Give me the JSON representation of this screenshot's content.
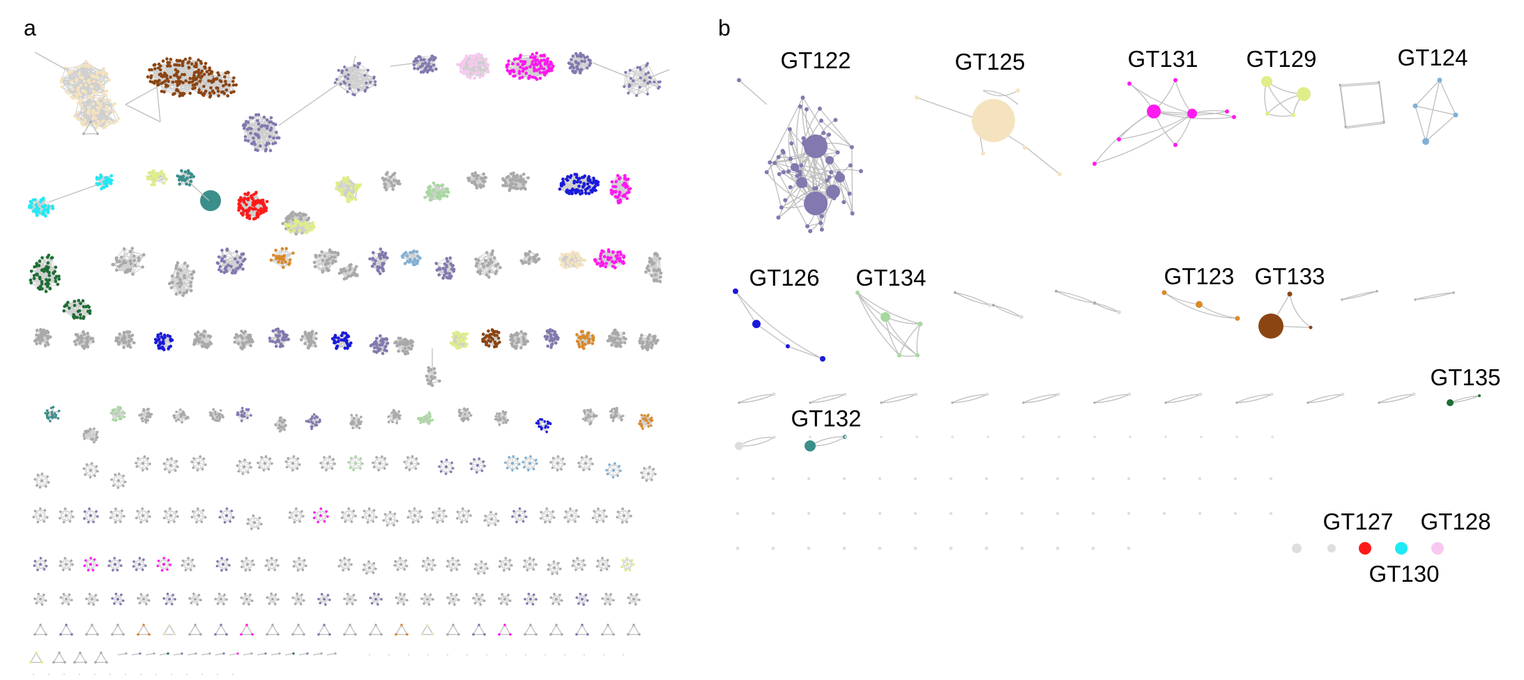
{
  "panels": {
    "a": {
      "letter": "a"
    },
    "b": {
      "letter": "b"
    }
  },
  "colors": {
    "grey": "#a9a9a9",
    "lightgrey": "#dedede",
    "edge": "#bdbdbd",
    "purple": "#8378b0",
    "beige": "#f5e3c0",
    "brown": "#8b4513",
    "magenta": "#ff19f0",
    "pink": "#f7c9f0",
    "cyan": "#1fe9f5",
    "lime": "#e0ed8a",
    "teal": "#3a8f8a",
    "red": "#ff1a1a",
    "blue": "#1a1adb",
    "green": "#a8d8a0",
    "darkgreen": "#1e6e35",
    "orange": "#d98a2b",
    "skyblue": "#7fb0d6"
  },
  "clusters": [
    {
      "name": "GT122",
      "color": "#8378b0"
    },
    {
      "name": "GT125",
      "color": "#f5e3c0"
    },
    {
      "name": "GT131",
      "color": "#ff19f0"
    },
    {
      "name": "GT129",
      "color": "#e0ed8a"
    },
    {
      "name": "GT124",
      "color": "#7fb0d6"
    },
    {
      "name": "GT126",
      "color": "#1a1adb"
    },
    {
      "name": "GT134",
      "color": "#a8d8a0"
    },
    {
      "name": "GT123",
      "color": "#d98a2b"
    },
    {
      "name": "GT133",
      "color": "#8b4513"
    },
    {
      "name": "GT135",
      "color": "#1e6e35"
    },
    {
      "name": "GT132",
      "color": "#3a8f8a"
    },
    {
      "name": "GT127",
      "color": "#ff1a1a"
    },
    {
      "name": "GT130",
      "color": "#1fe9f5"
    },
    {
      "name": "GT128",
      "color": "#f7c9f0"
    }
  ]
}
